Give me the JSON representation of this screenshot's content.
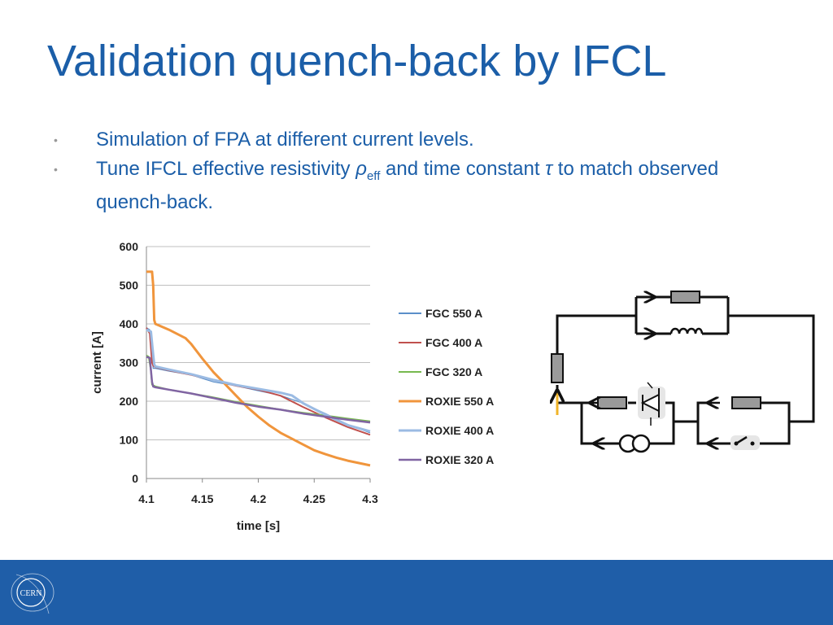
{
  "slide": {
    "title": "Validation quench-back by IFCL",
    "bullets": [
      {
        "text_a": "Simulation of FPA at different current levels."
      },
      {
        "text_a": "Tune IFCL effective resistivity ",
        "symbol_rho": "ρ",
        "sub_eff": "eff",
        "text_b": " and time constant ",
        "symbol_tau": "τ",
        "text_c": " to match observed quench-back."
      }
    ],
    "bullet_marker": "•"
  },
  "footer": {
    "logo_text": "CERN",
    "color": "#1f5ea8"
  },
  "chart_data": {
    "type": "line",
    "title": "",
    "xlabel": "time [s]",
    "ylabel": "current [A]",
    "xlim": [
      4.1,
      4.3
    ],
    "ylim": [
      0,
      600
    ],
    "x_ticks": [
      "4.1",
      "4.15",
      "4.2",
      "4.25",
      "4.3"
    ],
    "x_tick_values": [
      4.1,
      4.15,
      4.2,
      4.25,
      4.3
    ],
    "y_ticks": [
      "0",
      "100",
      "200",
      "300",
      "400",
      "500",
      "600"
    ],
    "y_tick_values": [
      0,
      100,
      200,
      300,
      400,
      500,
      600
    ],
    "grid": "horizontal",
    "legend_position": "right",
    "series": [
      {
        "name": "FGC 550 A",
        "color": "#5b8fc9",
        "width": 1.2,
        "points": [
          [
            4.1,
            390
          ],
          [
            4.103,
            385
          ],
          [
            4.105,
            320
          ],
          [
            4.106,
            285
          ],
          [
            4.108,
            285
          ],
          [
            4.12,
            278
          ],
          [
            4.14,
            268
          ],
          [
            4.16,
            250
          ],
          [
            4.18,
            240
          ],
          [
            4.2,
            227
          ],
          [
            4.22,
            215
          ],
          [
            4.24,
            195
          ],
          [
            4.26,
            168
          ],
          [
            4.28,
            140
          ],
          [
            4.3,
            118
          ]
        ]
      },
      {
        "name": "FGC 400 A",
        "color": "#c0504d",
        "width": 2,
        "points": [
          [
            4.1,
            390
          ],
          [
            4.103,
            375
          ],
          [
            4.105,
            300
          ],
          [
            4.106,
            292
          ],
          [
            4.108,
            288
          ],
          [
            4.12,
            280
          ],
          [
            4.14,
            268
          ],
          [
            4.16,
            255
          ],
          [
            4.18,
            240
          ],
          [
            4.2,
            230
          ],
          [
            4.22,
            214
          ],
          [
            4.24,
            185
          ],
          [
            4.26,
            158
          ],
          [
            4.28,
            133
          ],
          [
            4.3,
            113
          ]
        ]
      },
      {
        "name": "FGC 320 A",
        "color": "#77b94f",
        "width": 2,
        "points": [
          [
            4.1,
            318
          ],
          [
            4.102,
            315
          ],
          [
            4.104,
            280
          ],
          [
            4.105,
            243
          ],
          [
            4.108,
            238
          ],
          [
            4.12,
            230
          ],
          [
            4.14,
            220
          ],
          [
            4.16,
            210
          ],
          [
            4.18,
            198
          ],
          [
            4.2,
            188
          ],
          [
            4.22,
            178
          ],
          [
            4.24,
            170
          ],
          [
            4.26,
            163
          ],
          [
            4.28,
            155
          ],
          [
            4.3,
            148
          ]
        ]
      },
      {
        "name": "ROXIE 550 A",
        "color": "#f0953c",
        "width": 3,
        "points": [
          [
            4.1,
            535
          ],
          [
            4.105,
            535
          ],
          [
            4.106,
            500
          ],
          [
            4.107,
            410
          ],
          [
            4.108,
            400
          ],
          [
            4.12,
            385
          ],
          [
            4.135,
            363
          ],
          [
            4.14,
            348
          ],
          [
            4.15,
            310
          ],
          [
            4.16,
            275
          ],
          [
            4.17,
            245
          ],
          [
            4.18,
            215
          ],
          [
            4.19,
            185
          ],
          [
            4.2,
            160
          ],
          [
            4.21,
            137
          ],
          [
            4.22,
            118
          ],
          [
            4.23,
            103
          ],
          [
            4.24,
            88
          ],
          [
            4.25,
            73
          ],
          [
            4.26,
            63
          ],
          [
            4.27,
            54
          ],
          [
            4.28,
            46
          ],
          [
            4.29,
            40
          ],
          [
            4.3,
            34
          ]
        ]
      },
      {
        "name": "ROXIE 400 A",
        "color": "#9bbbe3",
        "width": 3,
        "points": [
          [
            4.1,
            385
          ],
          [
            4.104,
            380
          ],
          [
            4.106,
            320
          ],
          [
            4.107,
            295
          ],
          [
            4.108,
            290
          ],
          [
            4.12,
            282
          ],
          [
            4.14,
            270
          ],
          [
            4.16,
            255
          ],
          [
            4.18,
            242
          ],
          [
            4.2,
            232
          ],
          [
            4.22,
            222
          ],
          [
            4.23,
            215
          ],
          [
            4.24,
            195
          ],
          [
            4.26,
            165
          ],
          [
            4.28,
            138
          ],
          [
            4.3,
            122
          ]
        ]
      },
      {
        "name": "ROXIE 320 A",
        "color": "#8064a2",
        "width": 2.5,
        "points": [
          [
            4.1,
            315
          ],
          [
            4.103,
            312
          ],
          [
            4.105,
            250
          ],
          [
            4.106,
            238
          ],
          [
            4.108,
            236
          ],
          [
            4.12,
            230
          ],
          [
            4.14,
            220
          ],
          [
            4.16,
            208
          ],
          [
            4.18,
            196
          ],
          [
            4.2,
            186
          ],
          [
            4.22,
            178
          ],
          [
            4.24,
            168
          ],
          [
            4.26,
            160
          ],
          [
            4.28,
            152
          ],
          [
            4.3,
            145
          ]
        ]
      }
    ]
  }
}
